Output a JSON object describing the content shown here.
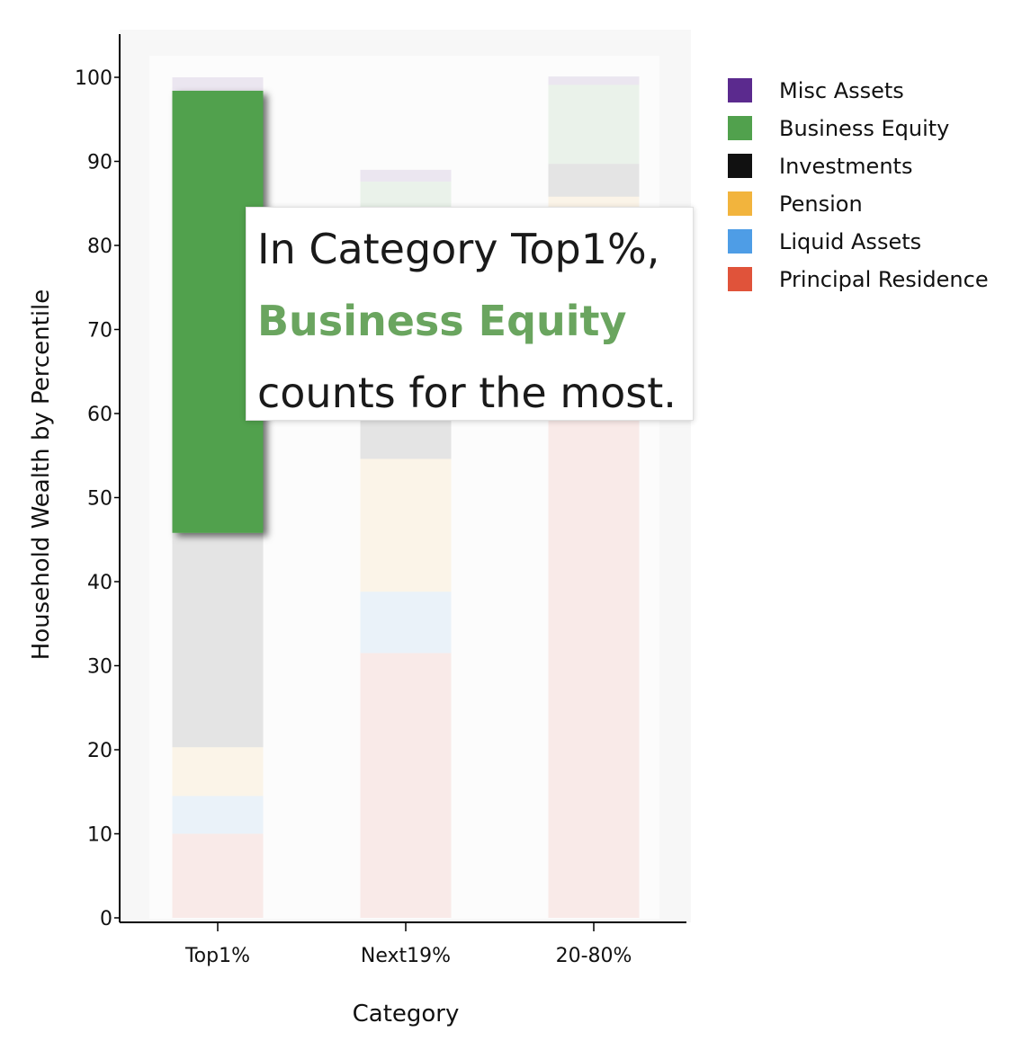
{
  "chart_data": {
    "type": "bar",
    "stacked": true,
    "xlabel": "Category",
    "ylabel": "Household Wealth by Percentile",
    "ylim": [
      0,
      100
    ],
    "yticks": [
      0,
      10,
      20,
      30,
      40,
      50,
      60,
      70,
      80,
      90,
      100
    ],
    "categories": [
      "Top1%",
      "Next19%",
      "20-80%"
    ],
    "series": [
      {
        "name": "Principal Residence",
        "color": "#e0533a",
        "values": [
          10,
          31.5,
          60
        ]
      },
      {
        "name": "Liquid Assets",
        "color": "#4e9de6",
        "values": [
          4.5,
          7.3,
          0
        ]
      },
      {
        "name": "Pension",
        "color": "#f2b43d",
        "values": [
          5.8,
          15.8,
          25.8
        ]
      },
      {
        "name": "Investments",
        "color": "#111111",
        "values": [
          25.5,
          8.5,
          3.9
        ]
      },
      {
        "name": "Business Equity",
        "color": "#51a14d",
        "values": [
          52.6,
          24.5,
          9.4
        ]
      },
      {
        "name": "Misc Assets",
        "color": "#5b2a8e",
        "values": [
          1.6,
          1.4,
          1.0
        ]
      }
    ],
    "legend_order": [
      "Misc Assets",
      "Business Equity",
      "Investments",
      "Pension",
      "Liquid Assets",
      "Principal Residence"
    ],
    "legend_position": "right",
    "highlight": {
      "category": "Top1%",
      "series": "Business Equity"
    },
    "grid": false
  },
  "tooltip": {
    "line1": "In Category Top1%,",
    "line2": "Business Equity",
    "line3": "counts for the most.",
    "highlight_color": "#6aa55f"
  }
}
